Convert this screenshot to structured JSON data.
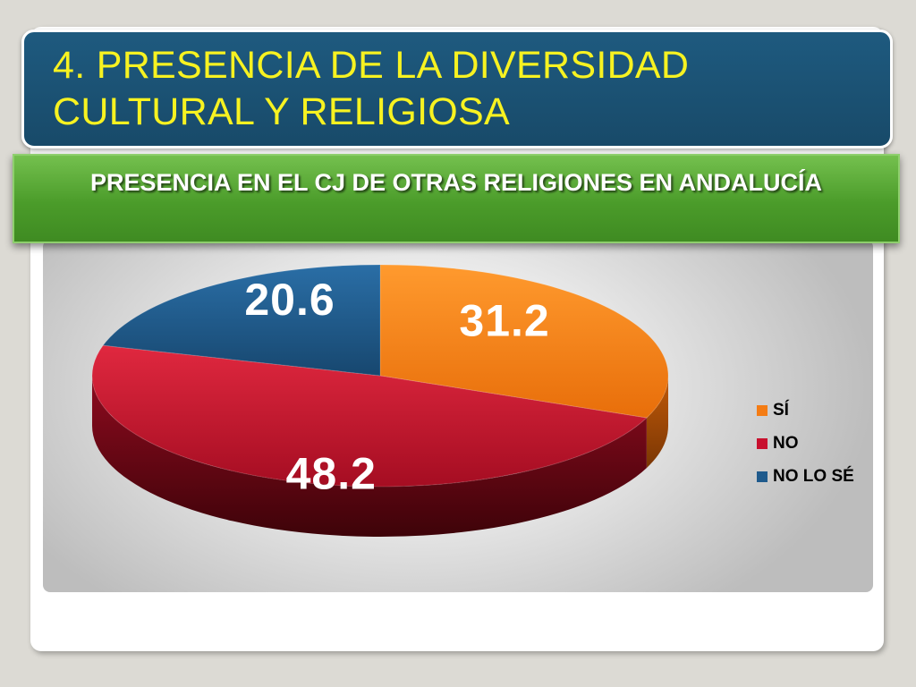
{
  "title": "4. PRESENCIA DE LA DIVERSIDAD CULTURAL Y RELIGIOSA",
  "subtitle": "PRESENCIA EN EL CJ DE OTRAS RELIGIONES EN ANDALUCÍA",
  "chart_data": {
    "type": "pie",
    "three_d": true,
    "categories": [
      "SÍ",
      "NO",
      "NO LO SÉ"
    ],
    "values": [
      31.2,
      48.2,
      20.6
    ],
    "value_labels": [
      "31.2",
      "48.2",
      "20.6"
    ],
    "colors": [
      "#f47c14",
      "#c8102e",
      "#1f5a8c"
    ],
    "legend": {
      "placement": "right",
      "entries": [
        "SÍ",
        "NO",
        "NO LO SÉ"
      ]
    },
    "grid": false
  }
}
